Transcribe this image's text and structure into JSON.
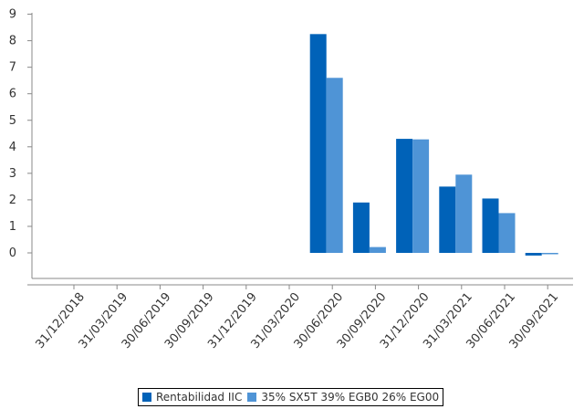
{
  "chart_data": {
    "type": "bar",
    "categories": [
      "31/12/2018",
      "31/03/2019",
      "30/06/2019",
      "30/09/2019",
      "31/12/2019",
      "31/03/2020",
      "30/06/2020",
      "30/09/2020",
      "31/12/2020",
      "31/03/2021",
      "30/06/2021",
      "30/09/2021"
    ],
    "series": [
      {
        "name": "Rentabilidad IIC",
        "color": "#0062b8",
        "values": [
          null,
          null,
          null,
          null,
          null,
          null,
          8.25,
          1.9,
          4.3,
          2.5,
          2.05,
          -0.1
        ]
      },
      {
        "name": "35% SX5T 39% EGB0 26% EG00",
        "color": "#4f94d6",
        "values": [
          null,
          null,
          null,
          null,
          null,
          null,
          6.6,
          0.22,
          4.28,
          2.95,
          1.5,
          0.0
        ]
      }
    ],
    "yticks": [
      0,
      1,
      2,
      3,
      4,
      5,
      6,
      7,
      8,
      9
    ],
    "ylim": [
      -1,
      9.3
    ],
    "grid": false,
    "legend_position": "bottom"
  }
}
